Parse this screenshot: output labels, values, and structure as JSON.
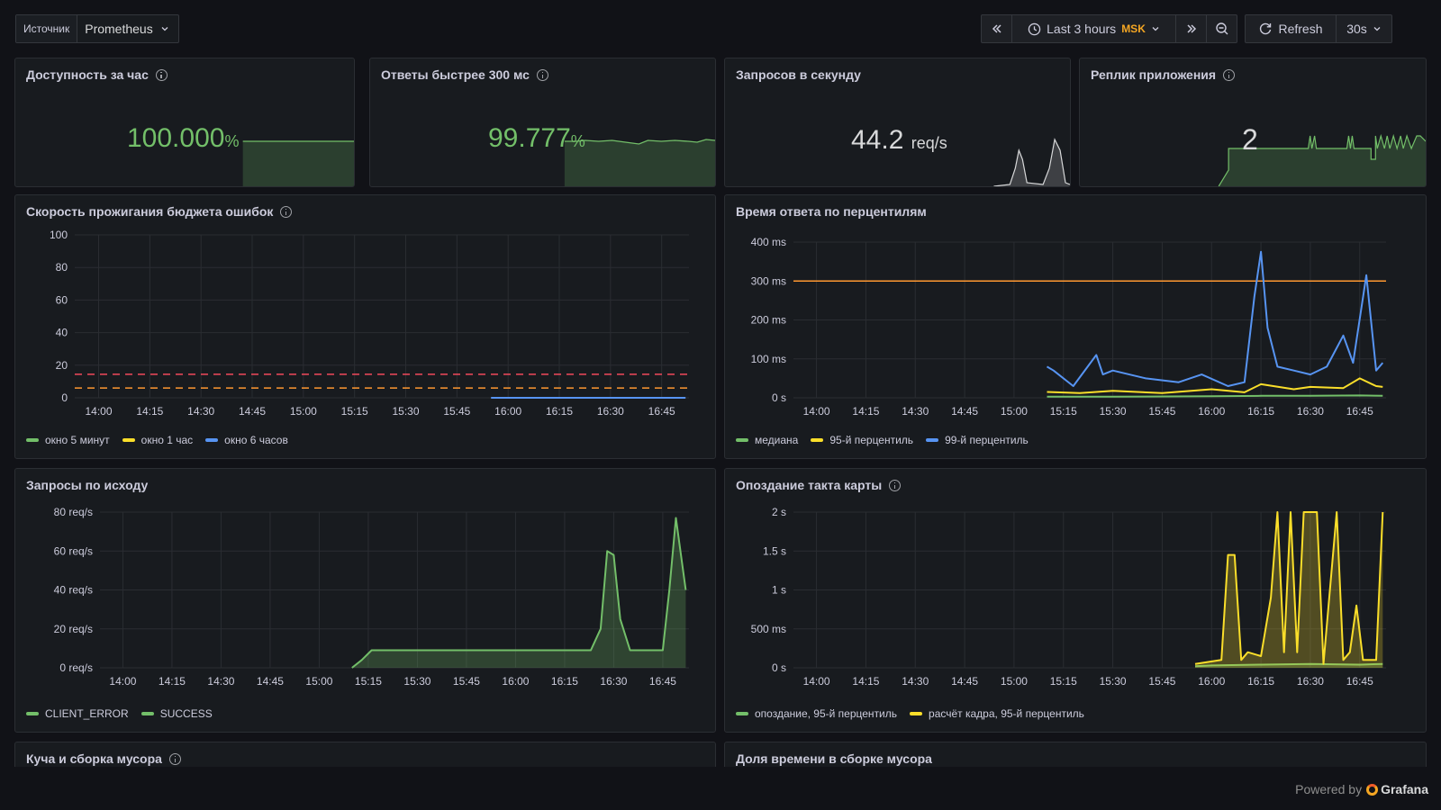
{
  "toolbar": {
    "datasource_label": "Источник",
    "datasource_value": "Prometheus",
    "time_range": "Last 3 hours",
    "timezone": "MSK",
    "refresh_label": "Refresh",
    "refresh_interval": "30s"
  },
  "colors": {
    "background": "#111217",
    "panel": "#181b1f",
    "green": "#73bf69",
    "yellow": "#fade2a",
    "blue": "#5794f2",
    "orange": "#ff9830",
    "red": "#f2495c"
  },
  "stats": [
    {
      "title": "Доступность за час",
      "value": "100.000",
      "unit": "%",
      "has_info": true
    },
    {
      "title": "Ответы быстрее 300 мс",
      "value": "99.777",
      "unit": "%",
      "has_info": true
    },
    {
      "title": "Запросов в секунду",
      "value": "44.2",
      "unit": "req/s",
      "has_info": false
    },
    {
      "title": "Реплик приложения",
      "value": "2",
      "unit": "",
      "has_info": true
    }
  ],
  "panels": {
    "burn": {
      "title": "Скорость прожигания бюджета ошибок",
      "legend": [
        "окно 5 минут",
        "окно 1 час",
        "окно 6 часов"
      ]
    },
    "latency": {
      "title": "Время ответа по перцентилям",
      "legend": [
        "медиана",
        "95-й перцентиль",
        "99-й перцентиль"
      ]
    },
    "requests": {
      "title": "Запросы по исходу",
      "legend": [
        "CLIENT_ERROR",
        "SUCCESS"
      ]
    },
    "tick": {
      "title": "Опоздание такта карты",
      "legend": [
        "опоздание, 95-й перцентиль",
        "расчёт кадра, 95-й перцентиль"
      ]
    },
    "heap": {
      "title": "Куча и сборка мусора"
    },
    "gc": {
      "title": "Доля времени в сборке мусора"
    }
  },
  "footer": {
    "powered": "Powered by",
    "brand": "Grafana"
  },
  "chart_data": [
    {
      "type": "line",
      "title": "Скорость прожигания бюджета ошибок",
      "x_ticks": [
        "14:00",
        "14:15",
        "14:30",
        "14:45",
        "15:00",
        "15:15",
        "15:30",
        "15:45",
        "16:00",
        "16:15",
        "16:30",
        "16:45"
      ],
      "ylim": [
        0,
        100
      ],
      "y_ticks": [
        "0",
        "20",
        "40",
        "60",
        "80",
        "100"
      ],
      "thresholds": [
        {
          "value": 14.4,
          "color": "red",
          "style": "dashed"
        },
        {
          "value": 6,
          "color": "orange",
          "style": "dashed"
        }
      ],
      "series": [
        {
          "name": "окно 5 минут",
          "color": "green",
          "x": [],
          "y": []
        },
        {
          "name": "окно 1 час",
          "color": "yellow",
          "x": [],
          "y": []
        },
        {
          "name": "окно 6 часов",
          "color": "blue",
          "x": [
            "15:55",
            "16:52"
          ],
          "y": [
            0,
            0
          ]
        }
      ]
    },
    {
      "type": "line",
      "title": "Время ответа по перцентилям",
      "x_ticks": [
        "14:00",
        "14:15",
        "14:30",
        "14:45",
        "15:00",
        "15:15",
        "15:30",
        "15:45",
        "16:00",
        "16:15",
        "16:30",
        "16:45"
      ],
      "ylim": [
        0,
        400
      ],
      "y_ticks": [
        "0 s",
        "100 ms",
        "200 ms",
        "300 ms",
        "400 ms"
      ],
      "thresholds": [
        {
          "value": 300,
          "color": "orange",
          "style": "solid"
        }
      ],
      "series": [
        {
          "name": "медиана",
          "color": "green",
          "x": [
            "15:10",
            "15:30",
            "16:00",
            "16:15",
            "16:30",
            "16:45",
            "16:52"
          ],
          "y": [
            3,
            3,
            4,
            5,
            5,
            6,
            5
          ]
        },
        {
          "name": "95-й перцентиль",
          "color": "yellow",
          "x": [
            "15:10",
            "15:20",
            "15:30",
            "15:45",
            "16:00",
            "16:10",
            "16:15",
            "16:25",
            "16:30",
            "16:40",
            "16:45",
            "16:50",
            "16:52"
          ],
          "y": [
            15,
            12,
            18,
            12,
            22,
            14,
            35,
            22,
            28,
            25,
            50,
            30,
            28
          ]
        },
        {
          "name": "99-й перцентиль",
          "color": "blue",
          "x": [
            "15:10",
            "15:12",
            "15:18",
            "15:25",
            "15:27",
            "15:30",
            "15:40",
            "15:50",
            "15:57",
            "16:05",
            "16:10",
            "16:13",
            "16:15",
            "16:17",
            "16:20",
            "16:25",
            "16:30",
            "16:35",
            "16:40",
            "16:43",
            "16:47",
            "16:50",
            "16:52"
          ],
          "y": [
            80,
            70,
            30,
            110,
            60,
            70,
            50,
            40,
            60,
            30,
            40,
            260,
            375,
            180,
            80,
            70,
            60,
            80,
            160,
            90,
            315,
            70,
            90
          ]
        }
      ]
    },
    {
      "type": "area",
      "title": "Запросы по исходу",
      "x_ticks": [
        "14:00",
        "14:15",
        "14:30",
        "14:45",
        "15:00",
        "15:15",
        "15:30",
        "15:45",
        "16:00",
        "16:15",
        "16:30",
        "16:45"
      ],
      "ylim": [
        0,
        80
      ],
      "y_ticks": [
        "0 req/s",
        "20 req/s",
        "40 req/s",
        "60 req/s",
        "80 req/s"
      ],
      "series": [
        {
          "name": "CLIENT_ERROR",
          "color": "green",
          "x": [],
          "y": []
        },
        {
          "name": "SUCCESS",
          "color": "green",
          "x": [
            "15:10",
            "15:13",
            "15:16",
            "15:30",
            "16:00",
            "16:23",
            "16:26",
            "16:28",
            "16:30",
            "16:32",
            "16:35",
            "16:45",
            "16:47",
            "16:49",
            "16:52"
          ],
          "y": [
            0,
            4,
            9,
            9,
            9,
            9,
            20,
            60,
            58,
            25,
            9,
            9,
            40,
            77,
            40
          ]
        }
      ]
    },
    {
      "type": "line",
      "title": "Опоздание такта карты",
      "x_ticks": [
        "14:00",
        "14:15",
        "14:30",
        "14:45",
        "15:00",
        "15:15",
        "15:30",
        "15:45",
        "16:00",
        "16:15",
        "16:30",
        "16:45"
      ],
      "ylim": [
        0,
        2
      ],
      "y_ticks": [
        "0 s",
        "500 ms",
        "1 s",
        "1.5 s",
        "2 s"
      ],
      "series": [
        {
          "name": "опоздание, 95-й перцентиль",
          "color": "green",
          "x": [
            "15:55",
            "16:00",
            "16:15",
            "16:30",
            "16:45",
            "16:52"
          ],
          "y": [
            0.02,
            0.03,
            0.04,
            0.05,
            0.04,
            0.05
          ]
        },
        {
          "name": "расчёт кадра, 95-й перцентиль",
          "color": "yellow",
          "x": [
            "15:55",
            "16:03",
            "16:05",
            "16:07",
            "16:09",
            "16:11",
            "16:15",
            "16:18",
            "16:20",
            "16:22",
            "16:24",
            "16:26",
            "16:28",
            "16:30",
            "16:32",
            "16:34",
            "16:38",
            "16:40",
            "16:42",
            "16:44",
            "16:46",
            "16:48",
            "16:50",
            "16:52"
          ],
          "y": [
            0.05,
            0.1,
            1.45,
            1.45,
            0.1,
            0.2,
            0.15,
            0.9,
            2.0,
            0.2,
            2.0,
            0.2,
            2.0,
            2.0,
            2.0,
            0.05,
            2.0,
            0.1,
            0.2,
            0.8,
            0.1,
            0.1,
            0.1,
            2.0
          ]
        }
      ]
    }
  ]
}
